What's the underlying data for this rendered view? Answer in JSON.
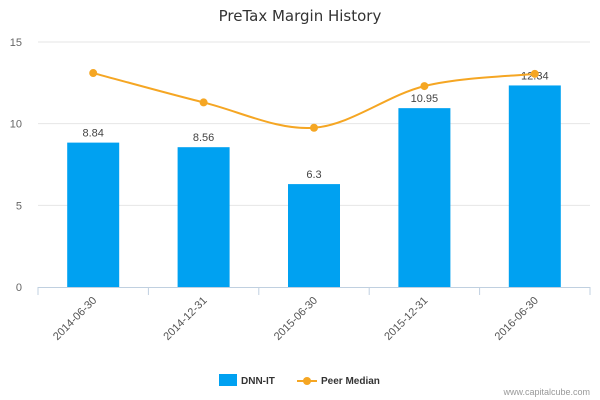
{
  "chart_data": {
    "type": "bar",
    "title": "PreTax Margin History",
    "categories": [
      "2014-06-30",
      "2014-12-31",
      "2015-06-30",
      "2015-12-31",
      "2016-06-30"
    ],
    "series": [
      {
        "name": "DNN-IT",
        "type": "bar",
        "values": [
          8.84,
          8.56,
          6.3,
          10.95,
          12.34
        ],
        "labels": [
          "8.84",
          "8.56",
          "6.3",
          "10.95",
          "12.34"
        ],
        "color": "#00a1f1"
      },
      {
        "name": "Peer Median",
        "type": "line",
        "values": [
          13.1,
          11.3,
          9.75,
          12.3,
          13.05
        ],
        "color": "#f5a623"
      }
    ],
    "yticks": [
      "0",
      "5",
      "10",
      "15"
    ],
    "ylim": [
      0,
      15
    ],
    "legend_placement": "bottom-center",
    "xlabel": "",
    "ylabel": ""
  },
  "credit": "www.capitalcube.com"
}
